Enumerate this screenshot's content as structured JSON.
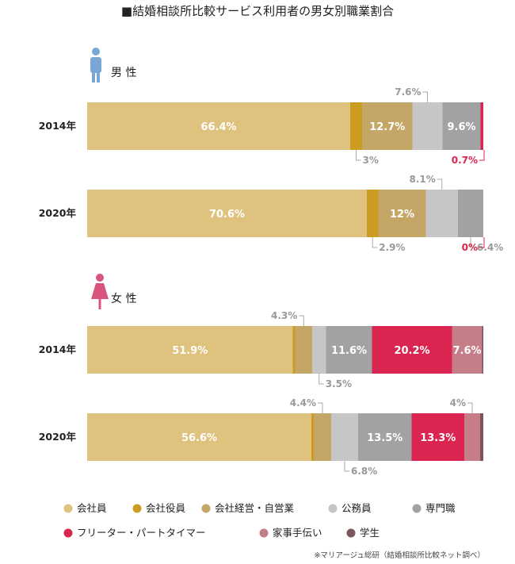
{
  "title": "■結婚相談所比較サービス利用者の男女別職業割合",
  "note": "※マリアージュ総研（結婚相談所比較ネット調べ）",
  "chart_data": {
    "type": "bar",
    "orientation": "horizontal",
    "stacked": true,
    "percent_suffix": "%",
    "categories": [
      "会社員",
      "会社役員",
      "会社経営・自営業",
      "公務員",
      "専門職",
      "フリーター・パートタイマー",
      "家事手伝い",
      "学生"
    ],
    "colors": [
      "#dfc27e",
      "#cc9c22",
      "#c4a666",
      "#c6c6c6",
      "#a2a2a2",
      "#d9254f",
      "#c57d87",
      "#7c5459"
    ],
    "groups": [
      {
        "gender_label": "男 性",
        "gender_icon": "male-icon",
        "icon_color": "#7aa6d6",
        "rows": [
          {
            "year": "2014年",
            "values": [
              66.4,
              3,
              12.7,
              7.6,
              9.6,
              0.7,
              0,
              0
            ],
            "labels": [
              "66.4",
              "3",
              "12.7",
              "7.6",
              "9.6",
              "0.7",
              "",
              ""
            ]
          },
          {
            "year": "2020年",
            "values": [
              70.6,
              2.9,
              12,
              8.1,
              6.4,
              0,
              0,
              0
            ],
            "labels": [
              "70.6",
              "2.9",
              "12",
              "8.1",
              "6.4",
              "0",
              "",
              ""
            ]
          }
        ]
      },
      {
        "gender_label": "女 性",
        "gender_icon": "female-icon",
        "icon_color": "#d9547c",
        "rows": [
          {
            "year": "2014年",
            "values": [
              51.9,
              0.6,
              4.3,
              3.5,
              11.6,
              20.2,
              7.6,
              0.3
            ],
            "labels": [
              "51.9",
              "",
              "4.3",
              "3.5",
              "11.6",
              "20.2",
              "7.6",
              ""
            ]
          },
          {
            "year": "2020年",
            "values": [
              56.6,
              0.6,
              4.4,
              6.8,
              13.5,
              13.3,
              4,
              0.8
            ],
            "labels": [
              "56.6",
              "",
              "4.4",
              "6.8",
              "13.5",
              "13.3",
              "4",
              ""
            ]
          }
        ]
      }
    ],
    "xlim": [
      0,
      100
    ],
    "legend_position": "bottom",
    "grid": false
  }
}
